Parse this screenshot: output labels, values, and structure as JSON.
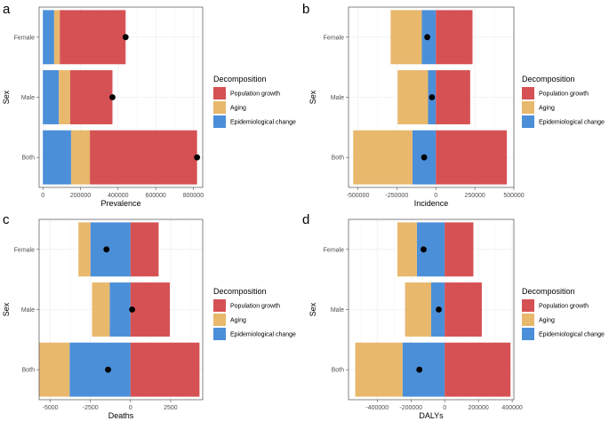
{
  "colors": {
    "population_growth": "#D65153",
    "aging": "#E8B86D",
    "epidemiological_change": "#4B8FD9",
    "point": "#000000"
  },
  "chart_data": [
    {
      "panel": "a",
      "type": "bar",
      "orientation": "horizontal",
      "stacked": true,
      "xlabel": "Prevalence",
      "ylabel": "Sex",
      "categories": [
        "Female",
        "Male",
        "Both"
      ],
      "xlim": [
        -20000,
        850000
      ],
      "xticks": [
        0,
        200000,
        400000,
        600000,
        800000
      ],
      "xtick_labels": [
        "0",
        "200000",
        "400000",
        "600000",
        "800000"
      ],
      "series": [
        {
          "name": "Epidemiological change",
          "key": "epidemiological_change",
          "values": [
            60000,
            85000,
            150000
          ]
        },
        {
          "name": "Aging",
          "key": "aging",
          "values": [
            30000,
            60000,
            100000
          ]
        },
        {
          "name": "Population growth",
          "key": "population_growth",
          "values": [
            350000,
            225000,
            570000
          ]
        }
      ],
      "points": [
        440000,
        370000,
        820000
      ],
      "legend": {
        "title": "Decomposition",
        "entries": [
          "Population growth",
          "Aging",
          "Epidemiological change"
        ],
        "position": "right"
      }
    },
    {
      "panel": "b",
      "type": "bar",
      "orientation": "horizontal",
      "stacked": true,
      "xlabel": "Incidence",
      "ylabel": "Sex",
      "categories": [
        "Female",
        "Male",
        "Both"
      ],
      "xlim": [
        -560000,
        500000
      ],
      "xticks": [
        -500000,
        -250000,
        0,
        250000,
        500000
      ],
      "xtick_labels": [
        "-500000",
        "-250000",
        "0",
        "250000",
        "500000"
      ],
      "series": [
        {
          "name": "Epidemiological change",
          "key": "epidemiological_change",
          "values": [
            -90000,
            -50000,
            -150000
          ]
        },
        {
          "name": "Aging",
          "key": "aging",
          "values": [
            -200000,
            -195000,
            -380000
          ]
        },
        {
          "name": "Population growth",
          "key": "population_growth",
          "values": [
            235000,
            220000,
            455000
          ]
        }
      ],
      "points": [
        -55000,
        -25000,
        -75000
      ],
      "legend": {
        "title": "Decomposition",
        "entries": [
          "Population growth",
          "Aging",
          "Epidemiological change"
        ],
        "position": "right"
      }
    },
    {
      "panel": "c",
      "type": "bar",
      "orientation": "horizontal",
      "stacked": true,
      "xlabel": "Deaths",
      "ylabel": "Sex",
      "categories": [
        "Female",
        "Male",
        "Both"
      ],
      "xlim": [
        -5700,
        4500
      ],
      "xticks": [
        -5000,
        -2500,
        0,
        2500
      ],
      "xtick_labels": [
        "-5000",
        "-2500",
        "0",
        "2500"
      ],
      "series": [
        {
          "name": "Epidemiological change",
          "key": "epidemiological_change",
          "values": [
            -2500,
            -1300,
            -3800
          ]
        },
        {
          "name": "Aging",
          "key": "aging",
          "values": [
            -750,
            -1100,
            -1900
          ]
        },
        {
          "name": "Population growth",
          "key": "population_growth",
          "values": [
            1750,
            2450,
            4300
          ]
        }
      ],
      "points": [
        -1500,
        100,
        -1400
      ],
      "legend": {
        "title": "Decomposition",
        "entries": [
          "Population growth",
          "Aging",
          "Epidemiological change"
        ],
        "position": "right"
      }
    },
    {
      "panel": "d",
      "type": "bar",
      "orientation": "horizontal",
      "stacked": true,
      "xlabel": "DALYs",
      "ylabel": "Sex",
      "categories": [
        "Female",
        "Male",
        "Both"
      ],
      "xlim": [
        -570000,
        410000
      ],
      "xticks": [
        -400000,
        -200000,
        0,
        200000,
        400000
      ],
      "xtick_labels": [
        "-400000",
        "-200000",
        "0",
        "200000",
        "400000"
      ],
      "series": [
        {
          "name": "Epidemiological change",
          "key": "epidemiological_change",
          "values": [
            -165000,
            -80000,
            -250000
          ]
        },
        {
          "name": "Aging",
          "key": "aging",
          "values": [
            -115000,
            -155000,
            -280000
          ]
        },
        {
          "name": "Population growth",
          "key": "population_growth",
          "values": [
            170000,
            220000,
            390000
          ]
        }
      ],
      "points": [
        -125000,
        -35000,
        -150000
      ],
      "legend": {
        "title": "Decomposition",
        "entries": [
          "Population growth",
          "Aging",
          "Epidemiological change"
        ],
        "position": "right"
      }
    }
  ]
}
